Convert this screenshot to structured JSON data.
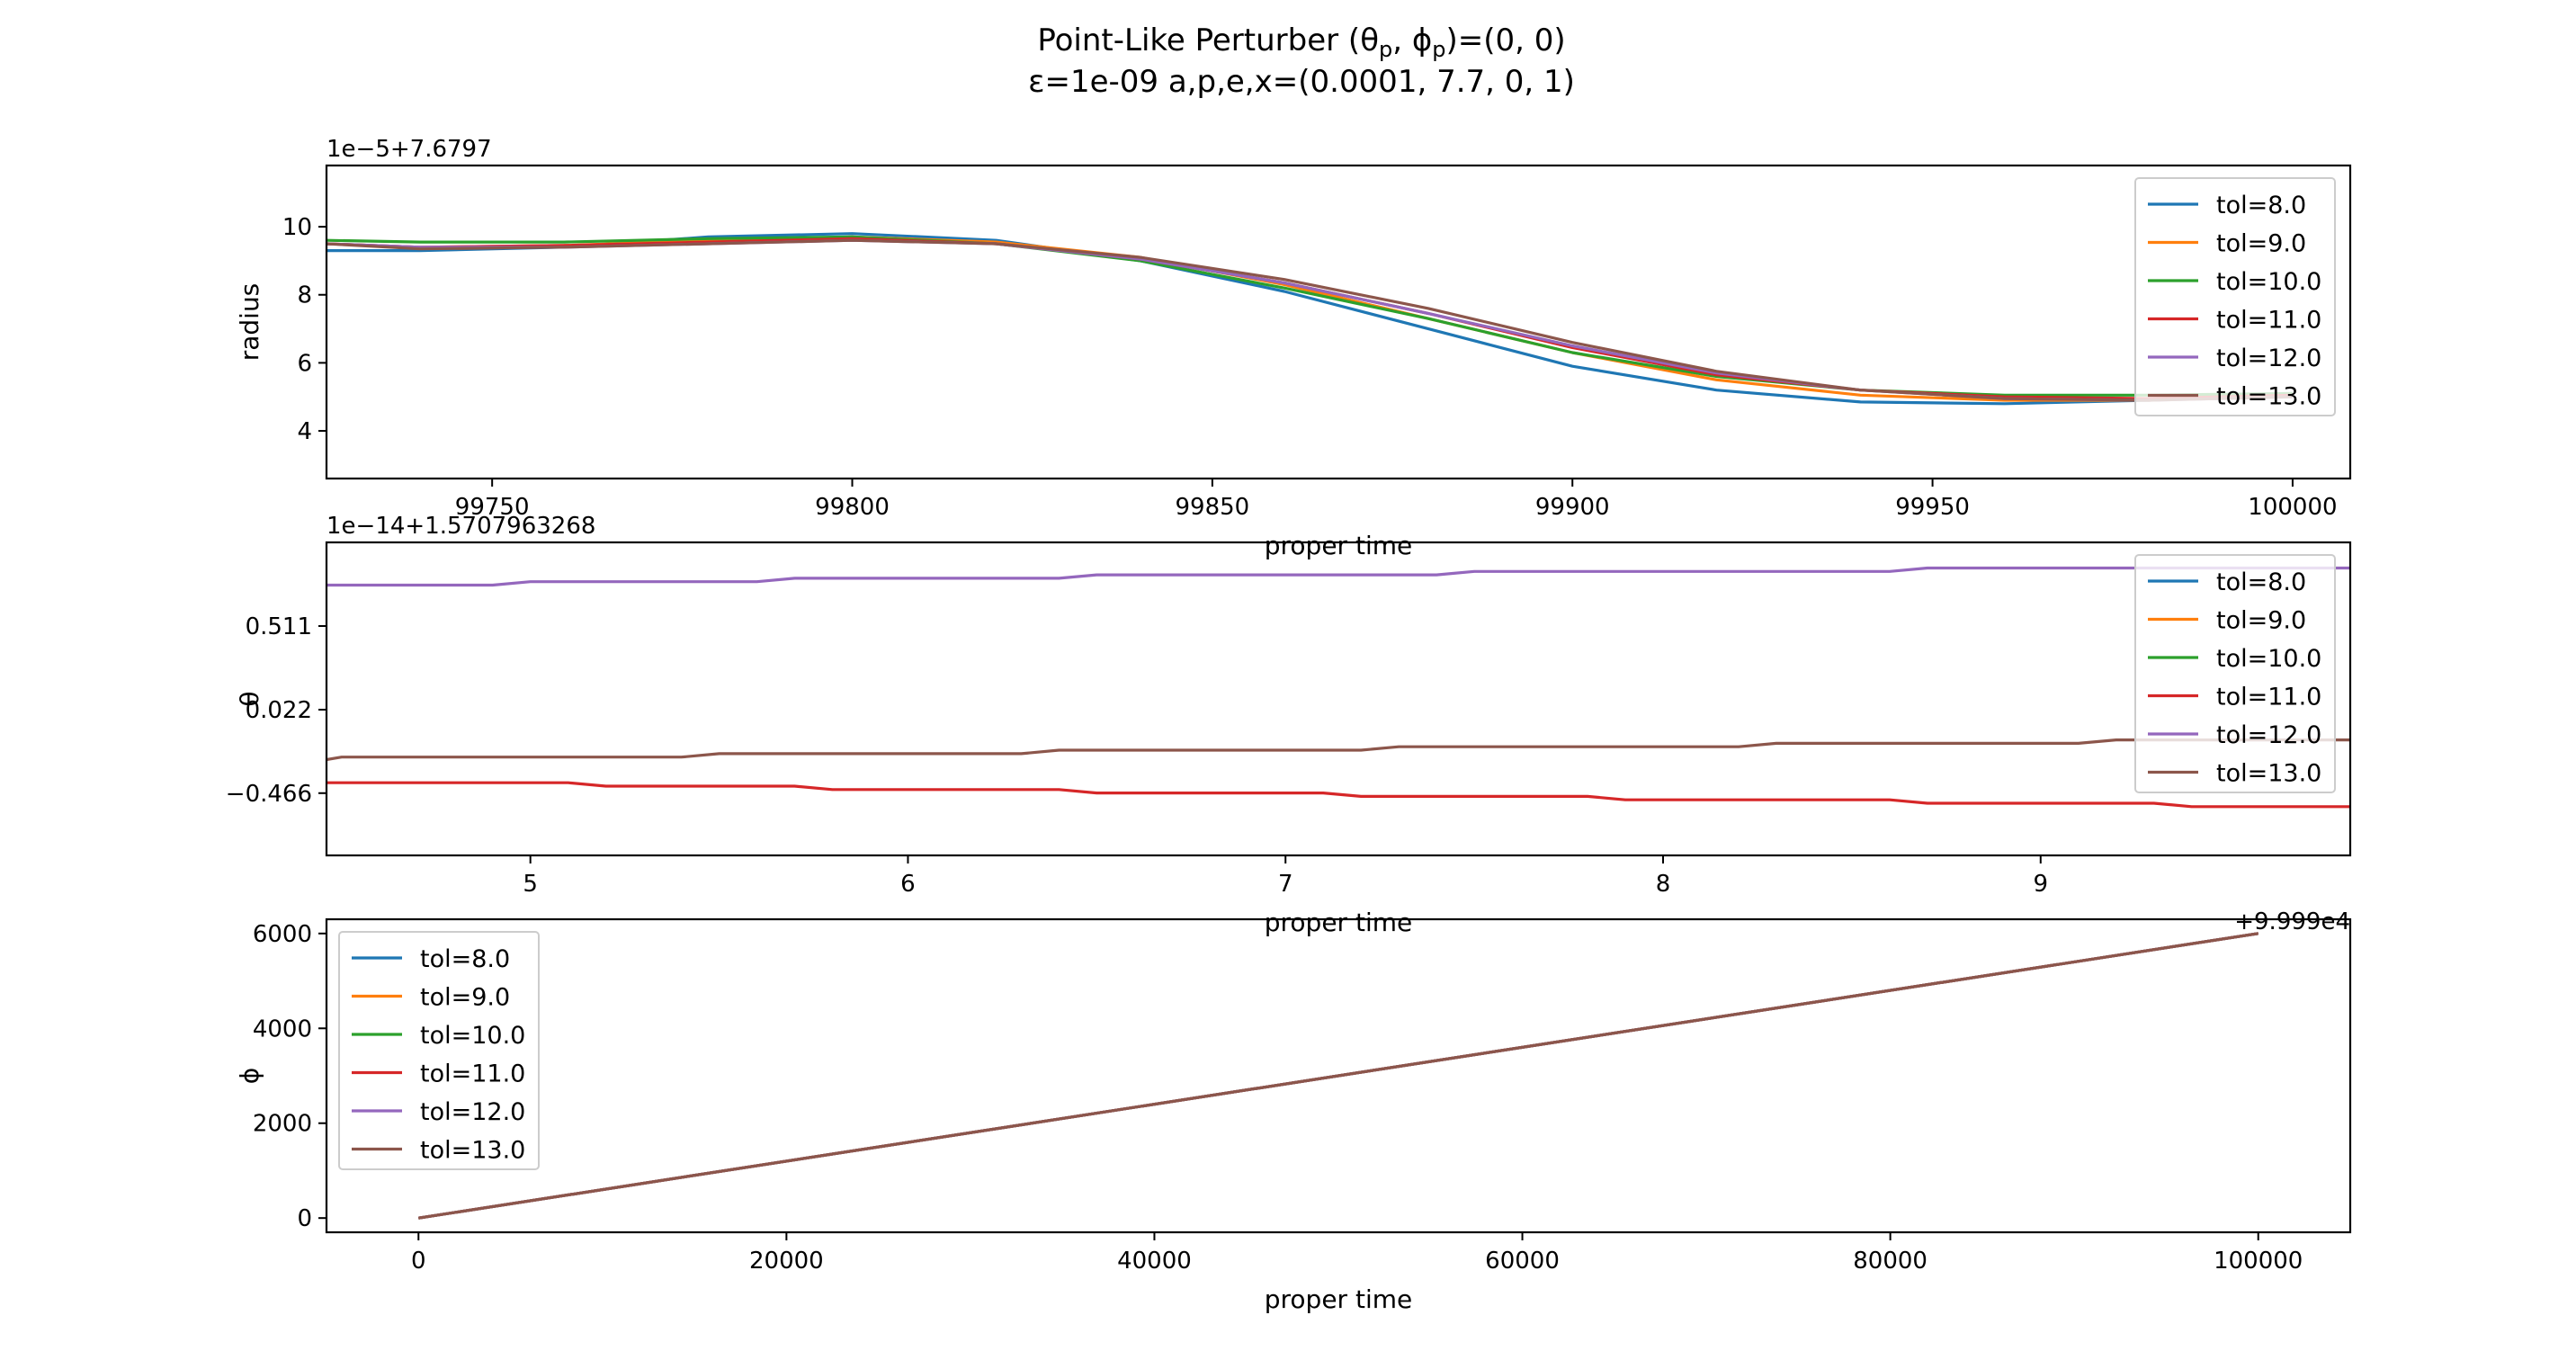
{
  "figure": {
    "title_line1": "Point-Like Perturber (θ",
    "title_line1_sub1": "p",
    "title_line1_mid": ", ϕ",
    "title_line1_sub2": "p",
    "title_line1_end": ")=(0, 0)",
    "title_line2": "ε=1e-09 a,p,e,x=(0.0001, 7.7, 0, 1)"
  },
  "colors": {
    "tol=8.0": "#1f77b4",
    "tol=9.0": "#ff7f0e",
    "tol=10.0": "#2ca02c",
    "tol=11.0": "#d62728",
    "tol=12.0": "#9467bd",
    "tol=13.0": "#8c564b"
  },
  "chart_data": [
    {
      "type": "line",
      "ylabel": "radius",
      "xlabel": "proper time",
      "offset_text": "1e−5+7.6797",
      "xlim": [
        99727,
        100008
      ],
      "ylim": [
        2.6,
        11.8
      ],
      "xticks": [
        99750,
        99800,
        99850,
        99900,
        99950,
        100000
      ],
      "xtick_labels": [
        "99750",
        "99800",
        "99850",
        "99900",
        "99950",
        "100000"
      ],
      "yticks": [
        4,
        6,
        8,
        10
      ],
      "ytick_labels": [
        "4",
        "6",
        "8",
        "10"
      ],
      "legend": "upper right",
      "series": [
        {
          "name": "tol=8.0",
          "x": [
            99727,
            99740,
            99760,
            99780,
            99800,
            99820,
            99840,
            99860,
            99880,
            99900,
            99920,
            99940,
            99960,
            99980,
            100000
          ],
          "y": [
            9.3,
            9.3,
            9.4,
            9.7,
            9.8,
            9.6,
            9.0,
            8.1,
            7.0,
            5.9,
            5.2,
            4.85,
            4.8,
            4.9,
            5.1
          ]
        },
        {
          "name": "tol=9.0",
          "x": [
            99727,
            99740,
            99760,
            99780,
            99800,
            99820,
            99840,
            99860,
            99880,
            99900,
            99920,
            99940,
            99960,
            99980,
            100000
          ],
          "y": [
            9.5,
            9.4,
            9.45,
            9.6,
            9.7,
            9.55,
            9.1,
            8.3,
            7.3,
            6.3,
            5.5,
            5.05,
            4.9,
            4.9,
            5.05
          ]
        },
        {
          "name": "tol=10.0",
          "x": [
            99727,
            99740,
            99760,
            99780,
            99800,
            99820,
            99840,
            99860,
            99880,
            99900,
            99920,
            99940,
            99960,
            99980,
            100000
          ],
          "y": [
            9.6,
            9.55,
            9.55,
            9.65,
            9.7,
            9.5,
            9.0,
            8.2,
            7.3,
            6.3,
            5.6,
            5.2,
            5.05,
            5.05,
            5.1
          ]
        },
        {
          "name": "tol=11.0",
          "x": [
            99727,
            99740,
            99760,
            99780,
            99800,
            99820,
            99840,
            99860,
            99880,
            99900,
            99920,
            99940,
            99960,
            99980,
            100000
          ],
          "y": [
            9.5,
            9.4,
            9.45,
            9.55,
            9.65,
            9.5,
            9.05,
            8.35,
            7.45,
            6.45,
            5.65,
            5.2,
            5.0,
            4.95,
            5.05
          ]
        },
        {
          "name": "tol=12.0",
          "x": [
            99727,
            99740,
            99760,
            99780,
            99800,
            99820,
            99840,
            99860,
            99880,
            99900,
            99920,
            99940,
            99960,
            99980,
            100000
          ],
          "y": [
            9.5,
            9.4,
            9.4,
            9.5,
            9.6,
            9.5,
            9.05,
            8.35,
            7.45,
            6.5,
            5.7,
            5.2,
            4.95,
            4.9,
            5.0
          ]
        },
        {
          "name": "tol=13.0",
          "x": [
            99727,
            99740,
            99760,
            99780,
            99800,
            99820,
            99840,
            99860,
            99880,
            99900,
            99920,
            99940,
            99960,
            99980,
            100000
          ],
          "y": [
            9.5,
            9.35,
            9.4,
            9.5,
            9.6,
            9.5,
            9.1,
            8.45,
            7.6,
            6.6,
            5.75,
            5.2,
            4.95,
            4.9,
            5.0
          ]
        }
      ]
    },
    {
      "type": "line",
      "ylabel": "θ",
      "xlabel": "proper time",
      "offset_text": "1e−14+1.5707963268",
      "x_offset_text": "+9.999e4",
      "xlim": [
        4.46,
        9.82
      ],
      "ylim": [
        -0.83,
        1.0
      ],
      "xticks": [
        5,
        6,
        7,
        8,
        9
      ],
      "xtick_labels": [
        "5",
        "6",
        "7",
        "8",
        "9"
      ],
      "yticks": [
        -0.466,
        0.022,
        0.511
      ],
      "ytick_labels": [
        "−0.466",
        "0.022",
        "0.511"
      ],
      "legend": "upper right",
      "series": [
        {
          "name": "tol=8.0",
          "x": [],
          "y": []
        },
        {
          "name": "tol=9.0",
          "x": [],
          "y": []
        },
        {
          "name": "tol=10.0",
          "x": [],
          "y": []
        },
        {
          "name": "tol=11.0",
          "x": [
            4.46,
            5.1,
            5.2,
            5.7,
            5.8,
            6.4,
            6.5,
            7.1,
            7.2,
            7.8,
            7.9,
            8.6,
            8.7,
            9.3,
            9.4,
            9.82
          ],
          "y": [
            -0.405,
            -0.405,
            -0.425,
            -0.425,
            -0.445,
            -0.445,
            -0.465,
            -0.465,
            -0.485,
            -0.485,
            -0.505,
            -0.505,
            -0.525,
            -0.525,
            -0.545,
            -0.545
          ]
        },
        {
          "name": "tol=12.0",
          "x": [
            4.46,
            4.9,
            5.0,
            5.6,
            5.7,
            6.4,
            6.5,
            7.4,
            7.5,
            8.6,
            8.7,
            9.82
          ],
          "y": [
            0.75,
            0.75,
            0.77,
            0.77,
            0.79,
            0.79,
            0.81,
            0.81,
            0.83,
            0.83,
            0.85,
            0.85
          ]
        },
        {
          "name": "tol=13.0",
          "x": [
            4.46,
            4.5,
            5.4,
            5.5,
            6.3,
            6.4,
            7.2,
            7.3,
            8.2,
            8.3,
            9.1,
            9.2,
            9.82
          ],
          "y": [
            -0.27,
            -0.255,
            -0.255,
            -0.235,
            -0.235,
            -0.215,
            -0.215,
            -0.195,
            -0.195,
            -0.175,
            -0.175,
            -0.155,
            -0.155
          ]
        }
      ]
    },
    {
      "type": "line",
      "ylabel": "ϕ",
      "xlabel": "proper time",
      "xlim": [
        -5000,
        105000
      ],
      "ylim": [
        -300,
        6300
      ],
      "xticks": [
        0,
        20000,
        40000,
        60000,
        80000,
        100000
      ],
      "xtick_labels": [
        "0",
        "20000",
        "40000",
        "60000",
        "80000",
        "100000"
      ],
      "yticks": [
        0,
        2000,
        4000,
        6000
      ],
      "ytick_labels": [
        "0",
        "2000",
        "4000",
        "6000"
      ],
      "legend": "upper left",
      "series": [
        {
          "name": "tol=8.0",
          "x": [
            0,
            100000
          ],
          "y": [
            0,
            6000
          ]
        },
        {
          "name": "tol=9.0",
          "x": [
            0,
            100000
          ],
          "y": [
            0,
            6000
          ]
        },
        {
          "name": "tol=10.0",
          "x": [
            0,
            100000
          ],
          "y": [
            0,
            6000
          ]
        },
        {
          "name": "tol=11.0",
          "x": [
            0,
            100000
          ],
          "y": [
            0,
            6000
          ]
        },
        {
          "name": "tol=12.0",
          "x": [
            0,
            100000
          ],
          "y": [
            0,
            6000
          ]
        },
        {
          "name": "tol=13.0",
          "x": [
            0,
            100000
          ],
          "y": [
            0,
            6000
          ]
        }
      ]
    }
  ]
}
